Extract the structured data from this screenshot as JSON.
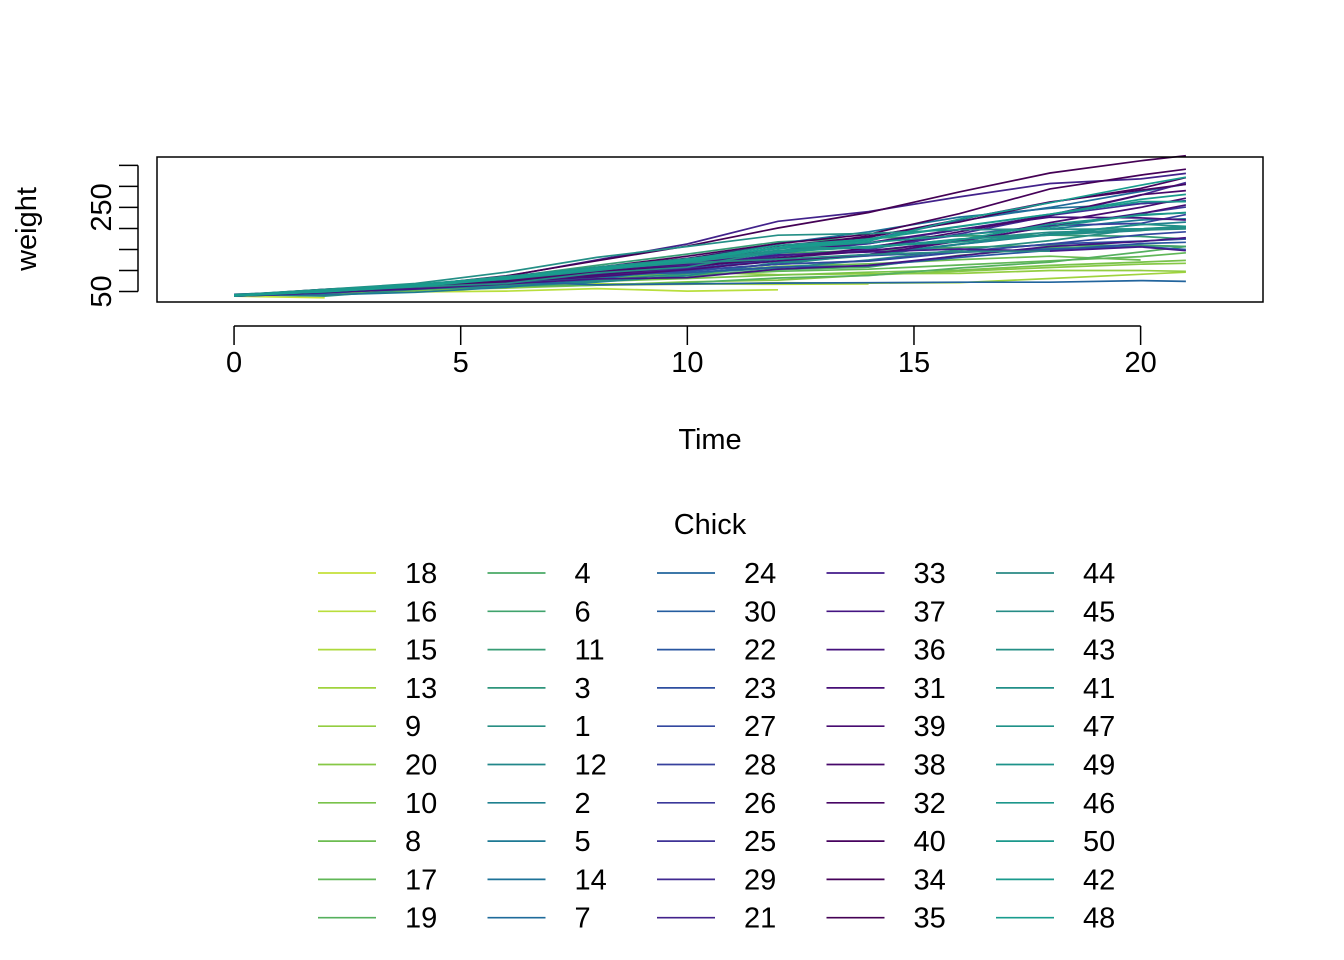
{
  "chart_data": {
    "type": "line",
    "title": "",
    "xlabel": "Time",
    "ylabel": "weight",
    "xlim": [
      -1.7,
      22.7
    ],
    "ylim": [
      25,
      370
    ],
    "x_ticks": [
      "0",
      "5",
      "10",
      "15",
      "20"
    ],
    "y_ticks": [
      "50",
      "250"
    ],
    "y_minor_ticks": [
      50,
      100,
      150,
      200,
      250,
      300,
      350
    ],
    "grid": false,
    "legend": {
      "title": "Chick",
      "placement": "bottom",
      "columns": 5,
      "entries": [
        "18",
        "16",
        "15",
        "13",
        "9",
        "20",
        "10",
        "8",
        "17",
        "19",
        "4",
        "6",
        "11",
        "3",
        "1",
        "12",
        "2",
        "5",
        "14",
        "7",
        "24",
        "30",
        "22",
        "23",
        "27",
        "28",
        "26",
        "25",
        "29",
        "21",
        "33",
        "37",
        "36",
        "31",
        "39",
        "38",
        "32",
        "40",
        "34",
        "35",
        "44",
        "45",
        "43",
        "41",
        "47",
        "49",
        "46",
        "50",
        "42",
        "48"
      ]
    },
    "colors": [
      "#c4e13a",
      "#b9de3c",
      "#add93c",
      "#a0d33d",
      "#93cd41",
      "#86c845",
      "#79c24a",
      "#6cbc50",
      "#60b757",
      "#55b05e",
      "#4aaa66",
      "#40a36d",
      "#379c75",
      "#2f957c",
      "#288e83",
      "#22878a",
      "#1f808f",
      "#1d7994",
      "#1d7298",
      "#1f6b9b",
      "#22649d",
      "#255d9f",
      "#2956a0",
      "#2e4fa0",
      "#33489f",
      "#37419d",
      "#3b399a",
      "#3e3296",
      "#402a91",
      "#42228b",
      "#43198a",
      "#441482",
      "#45117c",
      "#460e76",
      "#470b70",
      "#47086a",
      "#470564",
      "#46025e",
      "#450159",
      "#440154",
      "#2a8a85",
      "#268c86",
      "#248f86",
      "#218f88",
      "#1f9188",
      "#1d938a",
      "#1c968b",
      "#1b988c",
      "#1a9a8d",
      "#199c8e"
    ],
    "x": [
      0,
      2,
      4,
      6,
      8,
      10,
      12,
      14,
      16,
      18,
      20,
      21
    ],
    "series": [
      {
        "name": "18",
        "values": [
          39,
          35,
          null,
          null,
          null,
          null,
          null,
          null,
          null,
          null,
          null,
          null
        ]
      },
      {
        "name": "16",
        "values": [
          41,
          45,
          49,
          51,
          57,
          51,
          54,
          null,
          null,
          null,
          null,
          null
        ]
      },
      {
        "name": "15",
        "values": [
          41,
          49,
          56,
          64,
          68,
          68,
          67,
          68,
          null,
          null,
          null,
          null
        ]
      },
      {
        "name": "13",
        "values": [
          41,
          48,
          53,
          60,
          65,
          67,
          71,
          70,
          71,
          81,
          91,
          96
        ]
      },
      {
        "name": "9",
        "values": [
          42,
          51,
          59,
          68,
          85,
          96,
          90,
          92,
          93,
          100,
          100,
          98
        ]
      },
      {
        "name": "20",
        "values": [
          41,
          47,
          54,
          58,
          65,
          73,
          77,
          89,
          98,
          107,
          115,
          117
        ]
      },
      {
        "name": "10",
        "values": [
          41,
          44,
          52,
          63,
          74,
          81,
          89,
          96,
          101,
          112,
          120,
          124
        ]
      },
      {
        "name": "8",
        "values": [
          42,
          50,
          61,
          71,
          84,
          93,
          110,
          116,
          126,
          134,
          125,
          null
        ]
      },
      {
        "name": "17",
        "values": [
          42,
          51,
          61,
          72,
          83,
          89,
          98,
          103,
          113,
          123,
          133,
          142
        ]
      },
      {
        "name": "19",
        "values": [
          43,
          48,
          55,
          62,
          65,
          71,
          82,
          88,
          106,
          120,
          144,
          157
        ]
      },
      {
        "name": "4",
        "values": [
          42,
          49,
          56,
          67,
          74,
          87,
          102,
          108,
          136,
          154,
          160,
          157
        ]
      },
      {
        "name": "6",
        "values": [
          41,
          49,
          59,
          74,
          97,
          124,
          141,
          148,
          155,
          160,
          160,
          157
        ]
      },
      {
        "name": "11",
        "values": [
          43,
          51,
          63,
          84,
          112,
          139,
          168,
          177,
          182,
          184,
          181,
          175
        ]
      },
      {
        "name": "3",
        "values": [
          43,
          39,
          55,
          67,
          84,
          99,
          115,
          138,
          163,
          187,
          198,
          202
        ]
      },
      {
        "name": "1",
        "values": [
          42,
          51,
          59,
          64,
          76,
          93,
          106,
          125,
          149,
          171,
          199,
          205
        ]
      },
      {
        "name": "12",
        "values": [
          41,
          49,
          56,
          62,
          72,
          88,
          119,
          135,
          162,
          185,
          195,
          205
        ]
      },
      {
        "name": "2",
        "values": [
          40,
          49,
          58,
          72,
          84,
          103,
          122,
          138,
          162,
          187,
          209,
          215
        ]
      },
      {
        "name": "5",
        "values": [
          41,
          42,
          48,
          60,
          79,
          106,
          141,
          164,
          197,
          199,
          220,
          223
        ]
      },
      {
        "name": "14",
        "values": [
          41,
          49,
          62,
          79,
          101,
          128,
          164,
          192,
          227,
          248,
          259,
          266
        ]
      },
      {
        "name": "7",
        "values": [
          41,
          49,
          57,
          71,
          89,
          112,
          146,
          174,
          218,
          250,
          288,
          305
        ]
      },
      {
        "name": "24",
        "values": [
          42,
          52,
          58,
          74,
          66,
          68,
          70,
          71,
          72,
          72,
          76,
          74
        ]
      },
      {
        "name": "30",
        "values": [
          42,
          48,
          59,
          72,
          85,
          98,
          115,
          122,
          143,
          151,
          157,
          150
        ]
      },
      {
        "name": "22",
        "values": [
          41,
          55,
          64,
          77,
          90,
          95,
          108,
          111,
          131,
          148,
          164,
          167
        ]
      },
      {
        "name": "23",
        "values": [
          43,
          52,
          61,
          73,
          90,
          103,
          127,
          135,
          145,
          163,
          170,
          175
        ]
      },
      {
        "name": "27",
        "values": [
          39,
          46,
          58,
          73,
          87,
          100,
          115,
          123,
          144,
          163,
          185,
          192
        ]
      },
      {
        "name": "28",
        "values": [
          39,
          46,
          58,
          73,
          92,
          114,
          145,
          156,
          184,
          207,
          212,
          233
        ]
      },
      {
        "name": "26",
        "values": [
          42,
          48,
          57,
          74,
          93,
          114,
          136,
          147,
          169,
          205,
          236,
          251
        ]
      },
      {
        "name": "25",
        "values": [
          40,
          49,
          62,
          78,
          102,
          124,
          146,
          164,
          197,
          231,
          259,
          265
        ]
      },
      {
        "name": "29",
        "values": [
          39,
          48,
          59,
          74,
          87,
          106,
          134,
          150,
          187,
          230,
          279,
          309
        ]
      },
      {
        "name": "21",
        "values": [
          40,
          50,
          62,
          86,
          125,
          163,
          217,
          240,
          275,
          307,
          318,
          331
        ]
      },
      {
        "name": "33",
        "values": [
          39,
          50,
          63,
          77,
          96,
          111,
          137,
          144,
          151,
          146,
          156,
          147
        ]
      },
      {
        "name": "37",
        "values": [
          41,
          48,
          56,
          68,
          80,
          83,
          103,
          112,
          135,
          157,
          169,
          178
        ]
      },
      {
        "name": "36",
        "values": [
          39,
          48,
          61,
          76,
          98,
          116,
          145,
          166,
          198,
          227,
          225,
          220
        ]
      },
      {
        "name": "31",
        "values": [
          42,
          53,
          62,
          73,
          85,
          102,
          123,
          138,
          170,
          204,
          235,
          256
        ]
      },
      {
        "name": "39",
        "values": [
          42,
          50,
          61,
          78,
          89,
          109,
          130,
          146,
          170,
          214,
          250,
          272
        ]
      },
      {
        "name": "38",
        "values": [
          41,
          49,
          61,
          74,
          98,
          109,
          128,
          154,
          192,
          232,
          280,
          290
        ]
      },
      {
        "name": "32",
        "values": [
          41,
          49,
          65,
          82,
          107,
          129,
          159,
          179,
          221,
          263,
          291,
          305
        ]
      },
      {
        "name": "40",
        "values": [
          41,
          55,
          66,
          79,
          101,
          120,
          154,
          182,
          215,
          262,
          295,
          321
        ]
      },
      {
        "name": "34",
        "values": [
          41,
          49,
          63,
          85,
          107,
          134,
          164,
          186,
          235,
          294,
          327,
          341
        ]
      },
      {
        "name": "35",
        "values": [
          41,
          53,
          64,
          87,
          123,
          158,
          201,
          238,
          287,
          332,
          361,
          373
        ]
      },
      {
        "name": "44",
        "values": [
          42,
          51,
          65,
          86,
          103,
          118,
          127,
          138,
          145,
          146,
          null,
          null
        ]
      },
      {
        "name": "45",
        "values": [
          41,
          50,
          61,
          69,
          94,
          108,
          146,
          155,
          174,
          191,
          196,
          199
        ]
      },
      {
        "name": "43",
        "values": [
          42,
          55,
          69,
          96,
          131,
          157,
          184,
          188,
          197,
          198,
          199,
          200
        ]
      },
      {
        "name": "41",
        "values": [
          42,
          51,
          66,
          85,
          103,
          124,
          155,
          153,
          175,
          184,
          199,
          204
        ]
      },
      {
        "name": "47",
        "values": [
          41,
          53,
          66,
          79,
          100,
          123,
          148,
          157,
          168,
          185,
          210,
          205
        ]
      },
      {
        "name": "49",
        "values": [
          40,
          53,
          64,
          85,
          108,
          128,
          152,
          166,
          184,
          203,
          233,
          237
        ]
      },
      {
        "name": "46",
        "values": [
          40,
          52,
          62,
          82,
          101,
          120,
          144,
          156,
          173,
          210,
          231,
          238
        ]
      },
      {
        "name": "50",
        "values": [
          41,
          54,
          67,
          84,
          105,
          122,
          155,
          175,
          205,
          234,
          264,
          264
        ]
      },
      {
        "name": "42",
        "values": [
          42,
          49,
          63,
          84,
          103,
          126,
          160,
          174,
          204,
          234,
          269,
          281
        ]
      },
      {
        "name": "48",
        "values": [
          39,
          50,
          62,
          80,
          104,
          125,
          154,
          170,
          222,
          261,
          303,
          322
        ]
      }
    ]
  }
}
